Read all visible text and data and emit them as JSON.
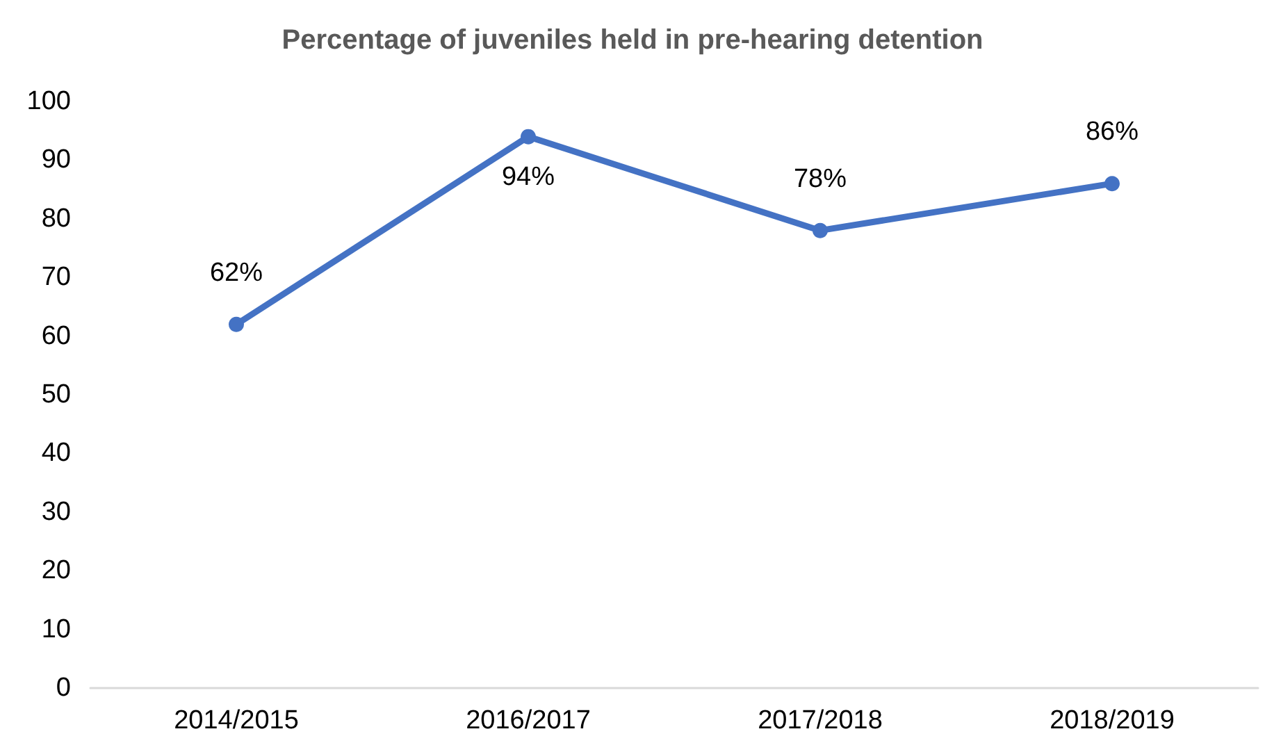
{
  "chart_data": {
    "type": "line",
    "title": "Percentage of juveniles held in pre-hearing detention",
    "categories": [
      "2014/2015",
      "2016/2017",
      "2017/2018",
      "2018/2019"
    ],
    "series": [
      {
        "color": "#4472c4",
        "values": [
          62,
          94,
          78,
          86
        ],
        "value_labels": [
          "62%",
          "94%",
          "78%",
          "86%"
        ]
      }
    ],
    "ylim": [
      0,
      100
    ],
    "yticks": [
      0,
      10,
      20,
      30,
      40,
      50,
      60,
      70,
      80,
      90,
      100
    ],
    "grid": false,
    "marker": "circle",
    "line_style": "solid"
  }
}
